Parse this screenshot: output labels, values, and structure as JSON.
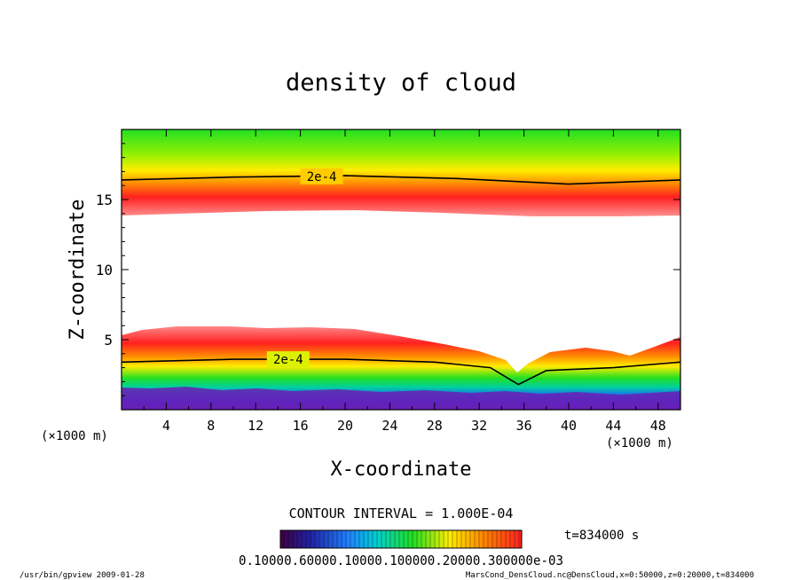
{
  "chart_data": {
    "type": "heatmap",
    "title": "density of cloud",
    "xlabel": "X-coordinate",
    "ylabel": "Z-coordinate",
    "x_unit": "(×1000 m)",
    "z_unit": "(×1000 m)",
    "xlim": [
      0,
      50
    ],
    "ylim": [
      0,
      20
    ],
    "x_ticks": [
      "4",
      "8",
      "12",
      "16",
      "20",
      "24",
      "28",
      "32",
      "36",
      "40",
      "44",
      "48"
    ],
    "y_ticks": [
      "5",
      "10",
      "15"
    ],
    "contours": [
      {
        "label": "2e-4",
        "z_profile": [
          [
            0,
            16.4
          ],
          [
            10,
            16.6
          ],
          [
            20,
            16.7
          ],
          [
            30,
            16.5
          ],
          [
            40,
            16.1
          ],
          [
            50,
            16.4
          ]
        ]
      },
      {
        "label": "2e-4",
        "z_profile": [
          [
            0,
            3.4
          ],
          [
            10,
            3.6
          ],
          [
            20,
            3.6
          ],
          [
            28,
            3.4
          ],
          [
            33,
            3.0
          ],
          [
            35.5,
            1.8
          ],
          [
            38,
            2.8
          ],
          [
            44,
            3.0
          ],
          [
            50,
            3.4
          ]
        ]
      }
    ],
    "contour_interval": "CONTOUR INTERVAL = 1.000E-04",
    "time": "t=834000 s",
    "colorbar_labels": "0.10000.60000.10000.100000.20000.300000e-03",
    "footer_left": "/usr/bin/gpview   2009-01-28",
    "footer_right": "MarsCond_DensCloud.nc@DensCloud,x=0:50000,z=0:20000,t=834000",
    "colors": {
      "red": "#ff2020",
      "yellow": "#ffee00",
      "green": "#22e022",
      "blue": "#1a60ff",
      "purple": "#7020b0"
    }
  }
}
